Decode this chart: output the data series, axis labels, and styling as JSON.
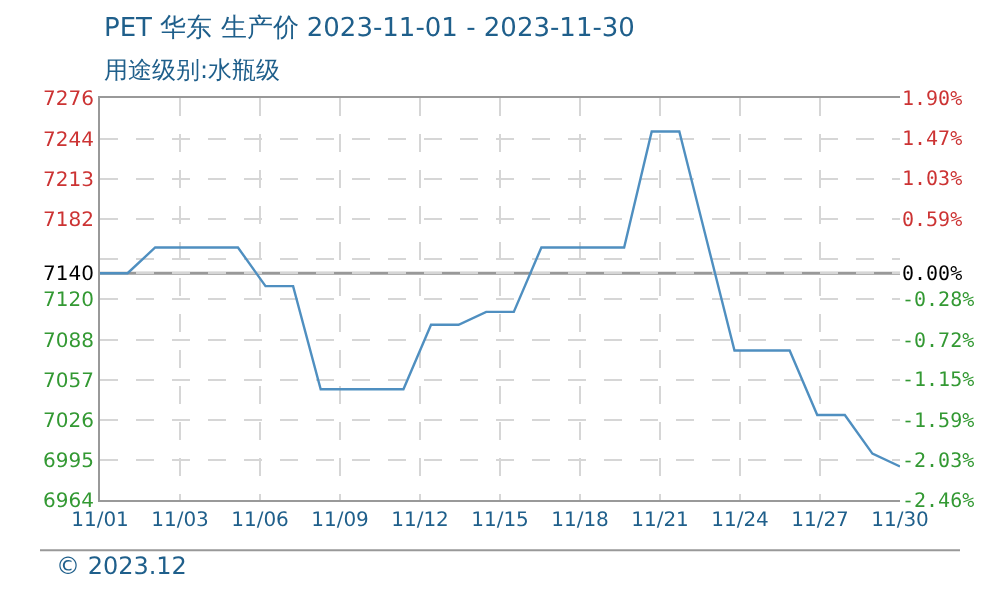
{
  "chart_data": {
    "type": "line",
    "title": "PET 华东 生产价 2023-11-01 - 2023-11-30",
    "subtitle": "用途级别:水瓶级",
    "x": [
      "2023-11-01",
      "2023-11-02",
      "2023-11-03",
      "2023-11-04",
      "2023-11-05",
      "2023-11-06",
      "2023-11-07",
      "2023-11-08",
      "2023-11-09",
      "2023-11-10",
      "2023-11-11",
      "2023-11-12",
      "2023-11-13",
      "2023-11-14",
      "2023-11-15",
      "2023-11-16",
      "2023-11-17",
      "2023-11-18",
      "2023-11-19",
      "2023-11-20",
      "2023-11-21",
      "2023-11-22",
      "2023-11-23",
      "2023-11-24",
      "2023-11-25",
      "2023-11-26",
      "2023-11-27",
      "2023-11-28",
      "2023-11-29",
      "2023-11-30"
    ],
    "series": [
      {
        "color": "#4f8fc0",
        "values": [
          7140,
          7140,
          7160,
          7160,
          7160,
          7160,
          7130,
          7130,
          7050,
          7050,
          7050,
          7050,
          7100,
          7100,
          7110,
          7110,
          7160,
          7160,
          7160,
          7160,
          7250,
          7250,
          7165,
          7080,
          7080,
          7080,
          7030,
          7030,
          7000,
          6990
        ]
      }
    ],
    "xlim": [
      "2023-11-01",
      "2023-11-30"
    ],
    "xticks": [
      {
        "value": "2023-11-01",
        "label": "11/01"
      },
      {
        "value": "2023-11-03T21:36",
        "label": "11/03"
      },
      {
        "value": "2023-11-06T19:12",
        "label": "11/06"
      },
      {
        "value": "2023-11-09T16:48",
        "label": "11/09"
      },
      {
        "value": "2023-11-12T14:24",
        "label": "11/12"
      },
      {
        "value": "2023-11-15T12:00",
        "label": "11/15"
      },
      {
        "value": "2023-11-18T09:36",
        "label": "11/18"
      },
      {
        "value": "2023-11-21T07:12",
        "label": "11/21"
      },
      {
        "value": "2023-11-24T04:48",
        "label": "11/24"
      },
      {
        "value": "2023-11-27T02:24",
        "label": "11/27"
      },
      {
        "value": "2023-11-30",
        "label": "11/30"
      }
    ],
    "ylim": [
      6964,
      7276
    ],
    "yticks": [
      7276,
      7244,
      7213,
      7182,
      {
        "value": 7151,
        "label": null
      },
      7140,
      7120,
      7088,
      7057,
      7026,
      6995,
      6964
    ],
    "y2lim": [
      -2.46,
      1.9
    ],
    "y2ticks": [
      {
        "value": 1.9,
        "label": "1.90%"
      },
      {
        "value": 1.47,
        "label": "1.47%"
      },
      {
        "value": 1.03,
        "label": "1.03%"
      },
      {
        "value": 0.59,
        "label": "0.59%"
      },
      {
        "value": 0,
        "label": "0.00%"
      },
      {
        "value": -0.28,
        "label": "-0.28%"
      },
      {
        "value": -0.72,
        "label": "-0.72%"
      },
      {
        "value": -1.15,
        "label": "-1.15%"
      },
      {
        "value": -1.59,
        "label": "-1.59%"
      },
      {
        "value": -2.03,
        "label": "-2.03%"
      },
      {
        "value": -2.46,
        "label": "-2.46%"
      }
    ],
    "ref_lines": [
      {
        "axis": "y",
        "value": 7140,
        "color": "#999999"
      }
    ],
    "grid": true,
    "marker": "none",
    "line_style": "solid",
    "annotations": [
      "© 2023.12"
    ]
  }
}
